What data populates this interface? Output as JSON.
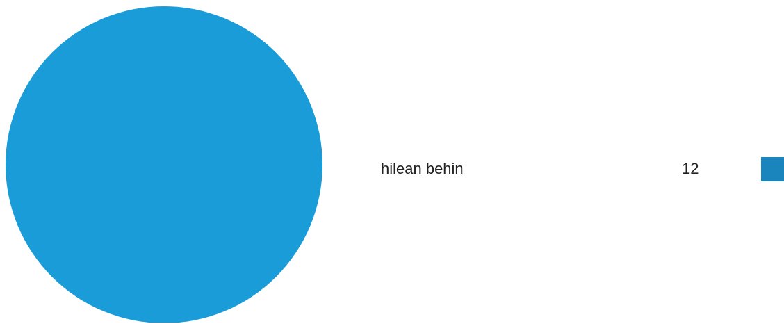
{
  "chart_data": {
    "type": "pie",
    "title": "",
    "slices": [
      {
        "label": "hilean behin",
        "value": 12,
        "value_label": "12",
        "color": "#1a9cd8",
        "legend_swatch_color": "#1a84bc"
      }
    ],
    "legend_position": "right"
  }
}
